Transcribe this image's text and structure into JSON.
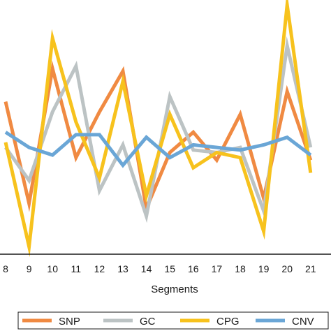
{
  "colors": {
    "SNP": "#f08a42",
    "GC": "#bcc3c4",
    "CPG": "#f7c21d",
    "CNV": "#6aa6d6",
    "axis": "#1a1a1a"
  },
  "chart_data": {
    "type": "line",
    "title": "",
    "xlabel": "Segments",
    "ylabel": "",
    "grid": false,
    "legend_position": "bottom",
    "categories": [
      "8",
      "9",
      "10",
      "11",
      "12",
      "13",
      "14",
      "15",
      "16",
      "17",
      "18",
      "19",
      "20",
      "21"
    ],
    "ylim": [
      0,
      100
    ],
    "series": [
      {
        "name": "SNP",
        "values": [
          60,
          20,
          73,
          38,
          56,
          72,
          18,
          40,
          48,
          37,
          55,
          22,
          64,
          37
        ]
      },
      {
        "name": "GC",
        "values": [
          42,
          29,
          56,
          74,
          25,
          43,
          15,
          62,
          41,
          40,
          42,
          17,
          82,
          42
        ]
      },
      {
        "name": "CPG",
        "values": [
          44,
          3,
          85,
          52,
          30,
          68,
          23,
          55,
          34,
          40,
          38,
          9,
          98,
          32
        ]
      },
      {
        "name": "CNV",
        "values": [
          48,
          42,
          39,
          47,
          47,
          35,
          46,
          38,
          43,
          42,
          41,
          43,
          46,
          39
        ]
      }
    ]
  }
}
